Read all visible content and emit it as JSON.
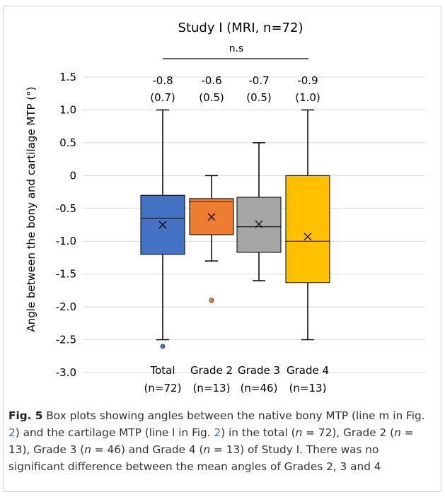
{
  "chart_data": {
    "type": "box",
    "title": "Study I (MRI, n=72)",
    "significance_label": "n.s",
    "ylabel": "Angle between the bony and cartilage MTP (°)",
    "ylim": [
      -3.0,
      1.5
    ],
    "yticks": [
      "1.5",
      "1.0",
      "0.5",
      "0",
      "-0.5",
      "-1.0",
      "-1.5",
      "-2.0",
      "-2.5",
      "-3.0"
    ],
    "ytick_values": [
      1.5,
      1.0,
      0.5,
      0,
      -0.5,
      -1.0,
      -1.5,
      -2.0,
      -2.5,
      -3.0
    ],
    "grid": true,
    "groups": [
      {
        "name": "Total",
        "n_label": "(n=72)",
        "mean_label": "-0.8",
        "sd_label": "(0.7)",
        "color": "#4472c4",
        "min": -2.5,
        "q1": -1.2,
        "median": -0.65,
        "q3": -0.3,
        "max": 1.0,
        "mean": -0.75,
        "outliers": [
          -2.6
        ]
      },
      {
        "name": "Grade 2",
        "n_label": "(n=13)",
        "mean_label": "-0.6",
        "sd_label": "(0.5)",
        "color": "#ed7d31",
        "min": -1.3,
        "q1": -0.9,
        "median": -0.4,
        "q3": -0.35,
        "max": 0.0,
        "mean": -0.63,
        "outliers": [
          -1.9
        ]
      },
      {
        "name": "Grade 3",
        "n_label": "(n=46)",
        "mean_label": "-0.7",
        "sd_label": "(0.5)",
        "color": "#a5a5a5",
        "min": -1.6,
        "q1": -1.17,
        "median": -0.78,
        "q3": -0.33,
        "max": 0.5,
        "mean": -0.74,
        "outliers": []
      },
      {
        "name": "Grade 4",
        "n_label": "(n=13)",
        "mean_label": "-0.9",
        "sd_label": "(1.0)",
        "color": "#ffc000",
        "min": -2.5,
        "q1": -1.63,
        "median": -1.0,
        "q3": 0.0,
        "max": 1.0,
        "mean": -0.93,
        "outliers": []
      }
    ]
  },
  "caption": {
    "fig_label": "Fig. 5",
    "text_1": "  Box plots showing angles between the native bony MTP (line m in Fig. ",
    "ref_1": "2",
    "text_2": ") and the cartilage MTP (line l in Fig. ",
    "ref_2": "2",
    "text_3": ") in the total (",
    "n_total": "n",
    "text_4": " = 72), Grade 2 (",
    "n_g2": "n",
    "text_5": " = 13), Grade 3 (",
    "n_g3": "n",
    "text_6": " = 46) and Grade 4 (",
    "n_g4": "n",
    "text_7": " = 13) of Study I. There was no significant difference between the mean angles of Grades 2, 3 and 4"
  }
}
